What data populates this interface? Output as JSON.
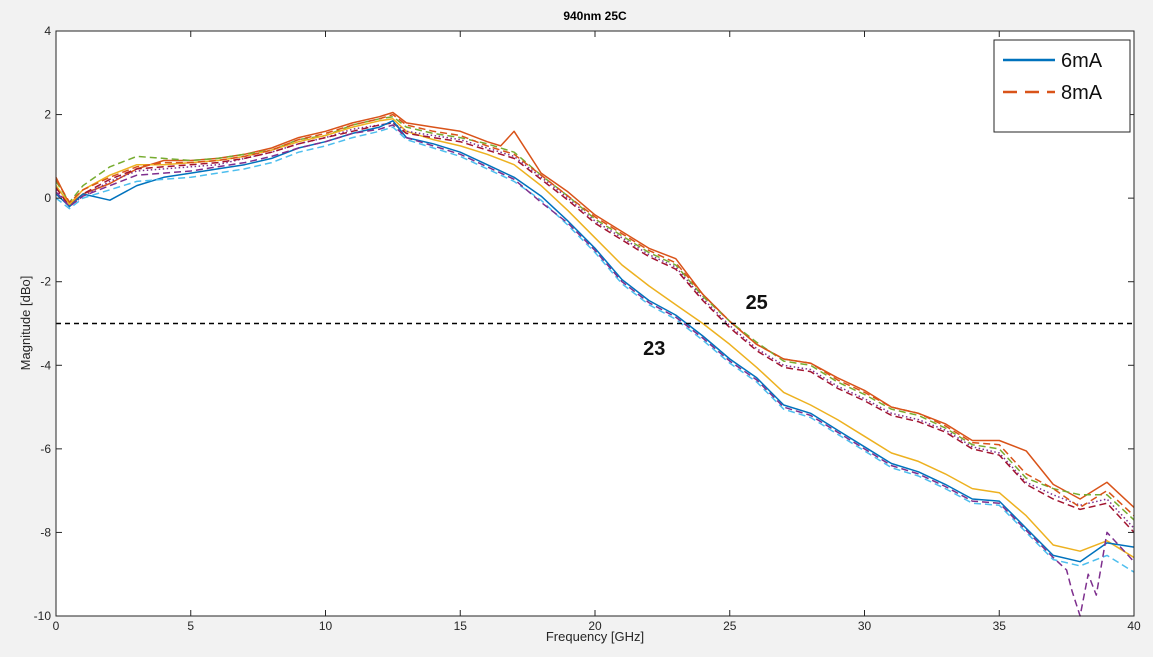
{
  "chart_data": {
    "type": "line",
    "title": "940nm 25C",
    "xlabel": "Frequency [GHz]",
    "ylabel": "Magnitude [dBo]",
    "xlim": [
      0,
      40
    ],
    "ylim": [
      -10,
      4
    ],
    "xticks": [
      0,
      5,
      10,
      15,
      20,
      25,
      30,
      35,
      40
    ],
    "yticks": [
      4,
      2,
      0,
      -2,
      -4,
      -6,
      -8,
      -10
    ],
    "grid": false,
    "legend": {
      "placement": "top-right",
      "entries": [
        {
          "label": "6mA",
          "color": "#0072BD",
          "style": "solid"
        },
        {
          "label": "8mA",
          "color": "#D95319",
          "style": "dashed"
        }
      ]
    },
    "reference_line": {
      "y": -3,
      "style": "dashed",
      "color": "#000000"
    },
    "annotations": [
      {
        "text": "25",
        "x": 26.0,
        "y": -2.65
      },
      {
        "text": "23",
        "x": 22.2,
        "y": -3.75
      }
    ],
    "series": [
      {
        "color": "#D95319",
        "style": "solid",
        "x": [
          0,
          0.5,
          1,
          2,
          3,
          4,
          5,
          6,
          7,
          8,
          9,
          10,
          11,
          12,
          12.5,
          13,
          14,
          15,
          16,
          16.5,
          17,
          17.5,
          18,
          19,
          20,
          21,
          22,
          23,
          24,
          25,
          26,
          27,
          28,
          29,
          30,
          31,
          32,
          33,
          34,
          35,
          36,
          37,
          38,
          39,
          40
        ],
        "y": [
          0.5,
          -0.15,
          0.1,
          0.35,
          0.7,
          0.9,
          0.9,
          0.95,
          1.05,
          1.2,
          1.45,
          1.6,
          1.8,
          1.95,
          2.05,
          1.8,
          1.7,
          1.6,
          1.35,
          1.25,
          1.6,
          1.1,
          0.6,
          0.15,
          -0.4,
          -0.8,
          -1.2,
          -1.45,
          -2.3,
          -2.95,
          -3.5,
          -3.85,
          -3.95,
          -4.3,
          -4.6,
          -5.0,
          -5.15,
          -5.4,
          -5.8,
          -5.8,
          -6.05,
          -6.85,
          -7.2,
          -6.8,
          -7.4
        ]
      },
      {
        "color": "#77AC30",
        "style": "dashed",
        "x": [
          0,
          0.5,
          1,
          2,
          3,
          4,
          5,
          6,
          7,
          8,
          9,
          10,
          11,
          12,
          12.5,
          13,
          14,
          15,
          16,
          17,
          18,
          19,
          20,
          21,
          22,
          23,
          24,
          25,
          26,
          27,
          28,
          29,
          30,
          31,
          32,
          33,
          34,
          35,
          36,
          37,
          38,
          39,
          40
        ],
        "y": [
          0.4,
          -0.1,
          0.3,
          0.75,
          1.0,
          0.95,
          0.9,
          0.95,
          1.05,
          1.15,
          1.4,
          1.5,
          1.75,
          1.9,
          1.95,
          1.7,
          1.55,
          1.45,
          1.3,
          1.1,
          0.55,
          0.05,
          -0.5,
          -0.9,
          -1.3,
          -1.6,
          -2.35,
          -2.95,
          -3.45,
          -3.9,
          -4.0,
          -4.4,
          -4.7,
          -5.05,
          -5.2,
          -5.5,
          -5.9,
          -6.0,
          -6.7,
          -6.95,
          -7.1,
          -7.1,
          -7.7
        ]
      },
      {
        "color": "#EDB120",
        "style": "solid",
        "x": [
          0,
          0.5,
          1,
          2,
          3,
          4,
          5,
          6,
          7,
          8,
          9,
          10,
          11,
          12,
          12.5,
          13,
          14,
          15,
          16,
          17,
          18,
          19,
          20,
          21,
          22,
          23,
          24,
          25,
          26,
          27,
          28,
          29,
          30,
          31,
          32,
          33,
          34,
          35,
          36,
          37,
          38,
          39,
          40
        ],
        "y": [
          0.3,
          -0.15,
          0.2,
          0.55,
          0.8,
          0.8,
          0.85,
          0.9,
          1.0,
          1.15,
          1.35,
          1.5,
          1.7,
          1.85,
          1.9,
          1.6,
          1.4,
          1.25,
          1.05,
          0.8,
          0.3,
          -0.3,
          -0.95,
          -1.6,
          -2.1,
          -2.55,
          -3.0,
          -3.5,
          -4.05,
          -4.65,
          -4.95,
          -5.3,
          -5.7,
          -6.1,
          -6.3,
          -6.6,
          -6.95,
          -7.05,
          -7.6,
          -8.3,
          -8.45,
          -8.2,
          -8.6
        ]
      },
      {
        "color": "#7E2F8E",
        "style": "dotted",
        "x": [
          0,
          0.5,
          1,
          2,
          3,
          4,
          5,
          6,
          7,
          8,
          9,
          10,
          11,
          12,
          12.5,
          13,
          14,
          15,
          16,
          17,
          18,
          19,
          20,
          21,
          22,
          23,
          24,
          25,
          26,
          27,
          28,
          29,
          30,
          31,
          32,
          33,
          34,
          35,
          36,
          37,
          38,
          39,
          40
        ],
        "y": [
          0.2,
          -0.2,
          0.05,
          0.4,
          0.65,
          0.7,
          0.75,
          0.8,
          0.95,
          1.1,
          1.3,
          1.45,
          1.65,
          1.75,
          1.8,
          1.6,
          1.5,
          1.4,
          1.2,
          1.0,
          0.5,
          0.0,
          -0.55,
          -0.95,
          -1.35,
          -1.65,
          -2.4,
          -3.05,
          -3.6,
          -4.0,
          -4.1,
          -4.5,
          -4.8,
          -5.15,
          -5.3,
          -5.55,
          -5.95,
          -6.1,
          -6.8,
          -7.1,
          -7.35,
          -7.2,
          -7.9
        ]
      },
      {
        "color": "#A2142F",
        "style": "dashed",
        "x": [
          0,
          0.5,
          1,
          2,
          3,
          4,
          5,
          6,
          7,
          8,
          9,
          10,
          11,
          12,
          12.5,
          13,
          14,
          15,
          16,
          17,
          18,
          19,
          20,
          21,
          22,
          23,
          24,
          25,
          26,
          27,
          28,
          29,
          30,
          31,
          32,
          33,
          34,
          35,
          36,
          37,
          38,
          39,
          40
        ],
        "y": [
          0.25,
          -0.2,
          0.1,
          0.45,
          0.7,
          0.75,
          0.8,
          0.85,
          0.95,
          1.1,
          1.3,
          1.45,
          1.6,
          1.75,
          1.8,
          1.55,
          1.45,
          1.35,
          1.15,
          0.95,
          0.45,
          -0.05,
          -0.6,
          -1.0,
          -1.4,
          -1.7,
          -2.45,
          -3.1,
          -3.65,
          -4.05,
          -4.15,
          -4.55,
          -4.85,
          -5.2,
          -5.35,
          -5.6,
          -6.0,
          -6.15,
          -6.85,
          -7.2,
          -7.45,
          -7.3,
          -8.0
        ]
      },
      {
        "color": "#0072BD",
        "style": "solid",
        "x": [
          0,
          0.5,
          1,
          2,
          3,
          4,
          5,
          6,
          7,
          8,
          9,
          10,
          11,
          12,
          12.5,
          13,
          14,
          15,
          16,
          17,
          18,
          19,
          20,
          21,
          22,
          23,
          24,
          25,
          26,
          27,
          28,
          29,
          30,
          31,
          32,
          33,
          34,
          35,
          36,
          37,
          38,
          39,
          40
        ],
        "y": [
          0.1,
          -0.2,
          0.1,
          -0.05,
          0.3,
          0.5,
          0.6,
          0.7,
          0.8,
          0.95,
          1.2,
          1.35,
          1.55,
          1.7,
          1.85,
          1.45,
          1.3,
          1.1,
          0.8,
          0.5,
          0.05,
          -0.55,
          -1.2,
          -1.95,
          -2.45,
          -2.8,
          -3.3,
          -3.85,
          -4.3,
          -4.95,
          -5.15,
          -5.55,
          -5.95,
          -6.35,
          -6.55,
          -6.85,
          -7.2,
          -7.25,
          -7.9,
          -8.55,
          -8.7,
          -8.25,
          -8.35
        ]
      },
      {
        "color": "#D95319",
        "style": "dashed",
        "x": [
          0,
          0.5,
          1,
          2,
          3,
          4,
          5,
          6,
          7,
          8,
          9,
          10,
          11,
          12,
          12.5,
          13,
          14,
          15,
          16,
          17,
          18,
          19,
          20,
          21,
          22,
          23,
          24,
          25,
          26,
          27,
          28,
          29,
          30,
          31,
          32,
          33,
          34,
          35,
          36,
          37,
          38,
          39,
          40
        ],
        "y": [
          0.45,
          -0.1,
          0.2,
          0.5,
          0.75,
          0.85,
          0.85,
          0.9,
          1.0,
          1.15,
          1.4,
          1.55,
          1.75,
          1.9,
          2.0,
          1.75,
          1.6,
          1.5,
          1.25,
          1.05,
          0.55,
          0.05,
          -0.45,
          -0.85,
          -1.25,
          -1.55,
          -2.3,
          -2.95,
          -3.5,
          -3.85,
          -3.95,
          -4.35,
          -4.65,
          -5.0,
          -5.15,
          -5.45,
          -5.85,
          -5.9,
          -6.6,
          -6.95,
          -7.4,
          -7.0,
          -7.6
        ]
      },
      {
        "color": "#4DBEEE",
        "style": "dashed",
        "x": [
          0,
          0.5,
          1,
          2,
          3,
          4,
          5,
          6,
          7,
          8,
          9,
          10,
          11,
          12,
          12.5,
          13,
          14,
          15,
          16,
          17,
          18,
          19,
          20,
          21,
          22,
          23,
          24,
          25,
          26,
          27,
          28,
          29,
          30,
          31,
          32,
          33,
          34,
          35,
          36,
          37,
          38,
          39,
          40
        ],
        "y": [
          0.0,
          -0.25,
          0.0,
          0.2,
          0.4,
          0.45,
          0.5,
          0.6,
          0.7,
          0.85,
          1.1,
          1.25,
          1.45,
          1.6,
          1.7,
          1.4,
          1.2,
          1.0,
          0.7,
          0.4,
          -0.05,
          -0.65,
          -1.3,
          -2.05,
          -2.55,
          -2.9,
          -3.4,
          -3.95,
          -4.4,
          -5.05,
          -5.25,
          -5.65,
          -6.05,
          -6.45,
          -6.65,
          -6.95,
          -7.3,
          -7.35,
          -8.0,
          -8.65,
          -8.8,
          -8.55,
          -8.95
        ]
      },
      {
        "color": "#7E2F8E",
        "style": "dashed",
        "x": [
          0,
          0.5,
          1,
          2,
          3,
          4,
          5,
          6,
          7,
          8,
          9,
          10,
          11,
          12,
          12.5,
          13,
          14,
          15,
          16,
          17,
          18,
          19,
          20,
          21,
          22,
          23,
          24,
          25,
          26,
          27,
          28,
          29,
          30,
          31,
          32,
          33,
          34,
          35,
          36,
          37,
          37.5,
          37.7,
          38,
          38.3,
          38.6,
          39,
          40
        ],
        "y": [
          0.15,
          -0.2,
          0.05,
          0.3,
          0.55,
          0.6,
          0.65,
          0.75,
          0.85,
          1.0,
          1.2,
          1.35,
          1.55,
          1.65,
          1.75,
          1.45,
          1.25,
          1.05,
          0.75,
          0.45,
          -0.1,
          -0.6,
          -1.25,
          -2.0,
          -2.5,
          -2.85,
          -3.35,
          -3.9,
          -4.35,
          -5.0,
          -5.2,
          -5.6,
          -6.0,
          -6.4,
          -6.6,
          -6.9,
          -7.25,
          -7.3,
          -7.95,
          -8.6,
          -8.9,
          -9.4,
          -10.0,
          -9.0,
          -9.5,
          -8.0,
          -8.7
        ]
      }
    ]
  }
}
